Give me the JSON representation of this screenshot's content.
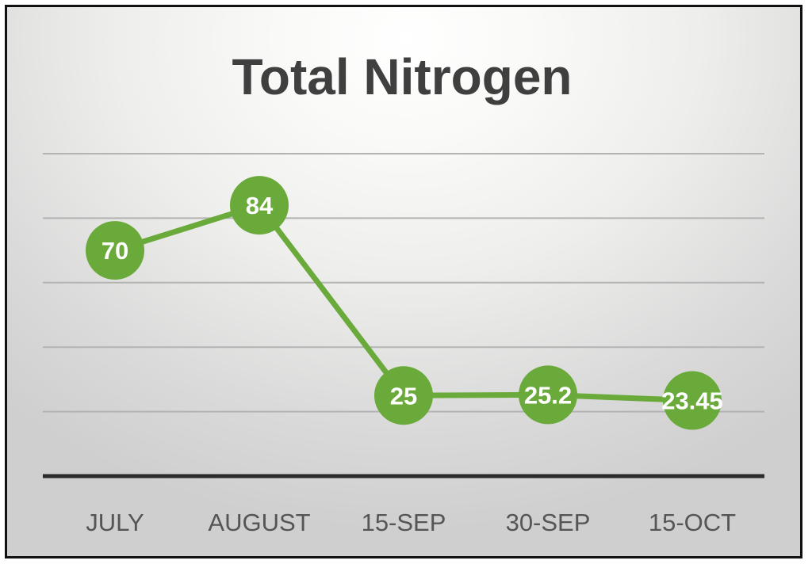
{
  "chart_data": {
    "type": "line",
    "title": "Total Nitrogen",
    "categories": [
      "JULY",
      "AUGUST",
      "15-SEP",
      "30-SEP",
      "15-OCT"
    ],
    "series": [
      {
        "values": [
          70,
          84,
          25,
          25.2,
          23.45
        ]
      }
    ],
    "data_labels": [
      "70",
      "84",
      "25",
      "25.2",
      "23.45"
    ],
    "ylim": [
      0,
      100
    ],
    "grid": true,
    "legend": "none",
    "colors": {
      "line": "#6aaa3a",
      "marker": "#6aaa3a",
      "gridline": "#b3b3b3",
      "axis": "#2b2b2b",
      "title": "#3f3f3f",
      "label": "#ffffff",
      "tick": "#555555"
    }
  }
}
